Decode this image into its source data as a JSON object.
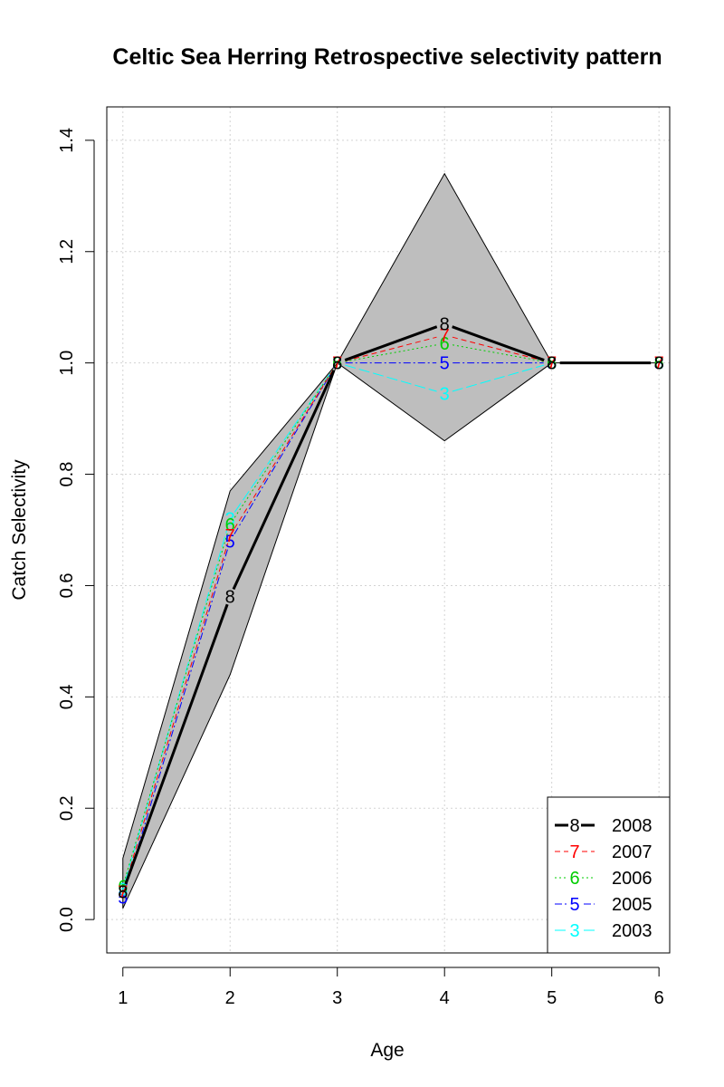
{
  "chart_data": {
    "type": "line",
    "title": "Celtic Sea Herring Retrospective selectivity pattern",
    "xlabel": "Age",
    "ylabel": "Catch Selectivity",
    "x": [
      1,
      2,
      3,
      4,
      5,
      6
    ],
    "xlim": [
      0.85,
      6.1
    ],
    "ylim": [
      -0.06,
      1.46
    ],
    "xticks": [
      1,
      2,
      3,
      4,
      5,
      6
    ],
    "yticks": [
      0.0,
      0.2,
      0.4,
      0.6,
      0.8,
      1.0,
      1.2,
      1.4
    ],
    "ytick_labels": [
      "0.0",
      "0.2",
      "0.4",
      "0.6",
      "0.8",
      "1.0",
      "1.2",
      "1.4"
    ],
    "grid": true,
    "legend_position": "bottom-right",
    "band": {
      "upper": [
        0.11,
        0.77,
        1.0,
        1.34,
        1.0,
        1.0
      ],
      "lower": [
        0.02,
        0.44,
        1.0,
        0.86,
        1.0,
        1.0
      ],
      "color": "#bebebe"
    },
    "series": [
      {
        "name": "2008",
        "marker": "8",
        "color": "#000000",
        "dash": "",
        "width": 3,
        "values": [
          0.05,
          0.58,
          1.0,
          1.07,
          1.0,
          1.0
        ]
      },
      {
        "name": "2007",
        "marker": "7",
        "color": "#ff0000",
        "dash": "6,4",
        "width": 1,
        "values": [
          0.05,
          0.69,
          1.0,
          1.05,
          1.0,
          1.0
        ]
      },
      {
        "name": "2006",
        "marker": "6",
        "color": "#00cd00",
        "dash": "2,3",
        "width": 1,
        "values": [
          0.06,
          0.71,
          1.0,
          1.035,
          1.0,
          1.0
        ]
      },
      {
        "name": "2005",
        "marker": "5",
        "color": "#0000ff",
        "dash": "8,3,2,3",
        "width": 1,
        "values": [
          0.04,
          0.68,
          1.0,
          1.0,
          1.0,
          1.0
        ]
      },
      {
        "name": "2003",
        "marker": "3",
        "color": "#00ffff",
        "dash": "12,4",
        "width": 1,
        "values": [
          0.055,
          0.72,
          1.0,
          0.945,
          1.0,
          1.0
        ]
      }
    ]
  }
}
